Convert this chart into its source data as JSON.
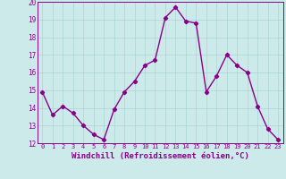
{
  "x": [
    0,
    1,
    2,
    3,
    4,
    5,
    6,
    7,
    8,
    9,
    10,
    11,
    12,
    13,
    14,
    15,
    16,
    17,
    18,
    19,
    20,
    21,
    22,
    23
  ],
  "y": [
    14.9,
    13.6,
    14.1,
    13.7,
    13.0,
    12.5,
    12.2,
    13.9,
    14.9,
    15.5,
    16.4,
    16.7,
    19.1,
    19.7,
    18.9,
    18.8,
    14.9,
    15.8,
    17.0,
    16.4,
    16.0,
    14.1,
    12.8,
    12.2
  ],
  "line_color": "#880088",
  "marker": "D",
  "marker_size": 2.2,
  "linewidth": 1.0,
  "xlabel": "Windchill (Refroidissement éolien,°C)",
  "xlabel_fontsize": 6.5,
  "ylim": [
    12,
    20
  ],
  "xlim": [
    -0.5,
    23.5
  ],
  "yticks": [
    12,
    13,
    14,
    15,
    16,
    17,
    18,
    19,
    20
  ],
  "xticks": [
    0,
    1,
    2,
    3,
    4,
    5,
    6,
    7,
    8,
    9,
    10,
    11,
    12,
    13,
    14,
    15,
    16,
    17,
    18,
    19,
    20,
    21,
    22,
    23
  ],
  "xtick_fontsize": 5.0,
  "ytick_fontsize": 5.5,
  "grid_color": "#aad4d4",
  "background_color": "#cceaea"
}
